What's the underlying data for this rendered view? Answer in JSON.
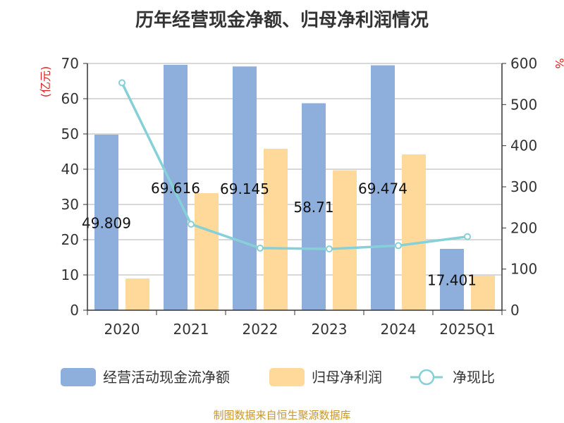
{
  "title": "历年经营现金净额、归母净利润情况",
  "source": "制图数据来自恒生聚源数据库",
  "chart_data": {
    "type": "bar",
    "categories": [
      "2020",
      "2021",
      "2022",
      "2023",
      "2024",
      "2025Q1"
    ],
    "series": [
      {
        "name": "经营活动现金流净额",
        "type": "bar",
        "axis": "left",
        "color": "#8eaedb",
        "values": [
          49.809,
          69.616,
          69.145,
          58.71,
          69.474,
          17.401
        ],
        "labels": [
          "49.809",
          "69.616",
          "69.145",
          "58.71",
          "69.474",
          "17.401"
        ]
      },
      {
        "name": "归母净利润",
        "type": "bar",
        "axis": "left",
        "color": "#ffd99a",
        "values": [
          9.0,
          33.2,
          45.8,
          39.7,
          44.2,
          9.8
        ]
      },
      {
        "name": "净现比",
        "type": "line",
        "axis": "right",
        "color": "#86d0d8",
        "values": [
          553,
          209,
          151,
          149,
          157,
          179
        ]
      }
    ],
    "left_axis": {
      "unit": "(亿元)",
      "min": 0,
      "max": 70,
      "ticks": [
        "0",
        "10",
        "20",
        "30",
        "40",
        "50",
        "60",
        "70"
      ]
    },
    "right_axis": {
      "unit": "%",
      "min": 0,
      "max": 600,
      "ticks": [
        "0",
        "100",
        "200",
        "300",
        "400",
        "500",
        "600"
      ]
    },
    "grid": true,
    "legend_position": "bottom"
  }
}
